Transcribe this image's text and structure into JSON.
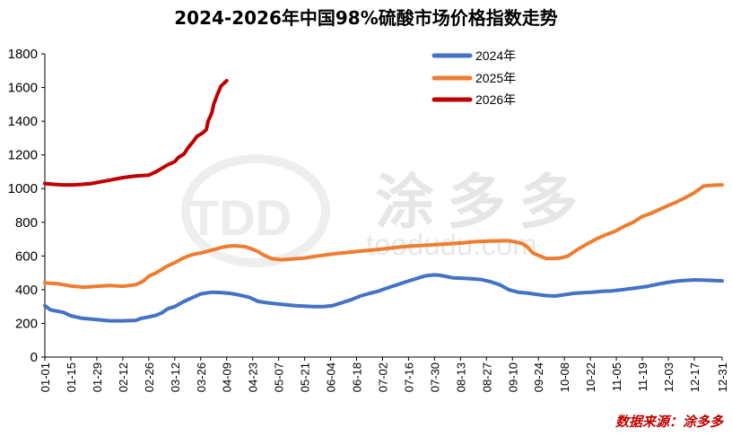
{
  "watermark": {
    "brand": "涂多多",
    "url": "toodudu.com",
    "logo": "TDD"
  },
  "source_text": "数据来源：涂多多",
  "chart_data": {
    "type": "line",
    "title": "2024-2026年中国98%硫酸市场价格指数走势",
    "xlabel": "",
    "ylabel": "",
    "ylim": [
      0,
      1800
    ],
    "yticks": [
      0,
      200,
      400,
      600,
      800,
      1000,
      1200,
      1400,
      1600,
      1800
    ],
    "categories": [
      "01-01",
      "01-15",
      "01-29",
      "02-12",
      "02-26",
      "03-12",
      "03-26",
      "04-09",
      "04-23",
      "05-07",
      "05-21",
      "06-04",
      "06-18",
      "07-02",
      "07-16",
      "07-30",
      "08-13",
      "08-27",
      "09-10",
      "09-24",
      "10-08",
      "10-22",
      "11-05",
      "11-19",
      "12-03",
      "12-17",
      "12-31"
    ],
    "x_unit": "day_of_year",
    "legend_position": "top-right",
    "grid": false,
    "series": [
      {
        "name": "2024年",
        "color": "#4472c4",
        "x": [
          0,
          3,
          10,
          14,
          20,
          28,
          35,
          42,
          49,
          52,
          56,
          60,
          63,
          66,
          70,
          75,
          80,
          84,
          90,
          95,
          100,
          103,
          110,
          115,
          120,
          125,
          130,
          135,
          140,
          145,
          150,
          155,
          160,
          165,
          170,
          175,
          180,
          185,
          190,
          195,
          200,
          205,
          210,
          213,
          220,
          225,
          230,
          235,
          240,
          245,
          250,
          255,
          260,
          265,
          270,
          275,
          280,
          285,
          290,
          295,
          300,
          305,
          310,
          315,
          320,
          325,
          330,
          335,
          340,
          345,
          350,
          355,
          360,
          365
        ],
        "values": [
          305,
          280,
          265,
          245,
          230,
          222,
          215,
          215,
          218,
          230,
          238,
          248,
          262,
          285,
          300,
          330,
          355,
          375,
          385,
          383,
          378,
          372,
          355,
          330,
          322,
          316,
          310,
          305,
          302,
          300,
          300,
          305,
          322,
          340,
          362,
          378,
          392,
          412,
          430,
          448,
          465,
          482,
          488,
          485,
          470,
          468,
          465,
          460,
          448,
          430,
          400,
          385,
          380,
          372,
          365,
          362,
          370,
          378,
          382,
          385,
          390,
          392,
          398,
          405,
          412,
          420,
          432,
          442,
          450,
          455,
          458,
          457,
          455,
          452
        ]
      },
      {
        "name": "2025年",
        "color": "#ed7d31",
        "x": [
          0,
          7,
          14,
          21,
          28,
          35,
          42,
          49,
          53,
          56,
          60,
          63,
          66,
          70,
          75,
          80,
          85,
          90,
          95,
          100,
          103,
          108,
          112,
          115,
          118,
          122,
          127,
          133,
          140,
          147,
          155,
          162,
          169,
          176,
          183,
          190,
          197,
          204,
          211,
          218,
          225,
          232,
          239,
          246,
          250,
          253,
          257,
          260,
          263,
          270,
          274,
          278,
          282,
          287,
          292,
          297,
          302,
          307,
          312,
          317,
          322,
          327,
          332,
          337,
          340,
          345,
          350,
          355,
          360,
          365
        ],
        "values": [
          440,
          435,
          422,
          415,
          420,
          425,
          420,
          430,
          450,
          480,
          500,
          520,
          540,
          560,
          590,
          610,
          620,
          635,
          650,
          660,
          660,
          655,
          640,
          625,
          605,
          585,
          578,
          582,
          588,
          600,
          612,
          620,
          628,
          635,
          642,
          652,
          658,
          663,
          668,
          672,
          678,
          685,
          688,
          690,
          690,
          685,
          675,
          655,
          618,
          585,
          585,
          588,
          600,
          638,
          670,
          700,
          725,
          745,
          775,
          800,
          835,
          855,
          880,
          905,
          918,
          945,
          975,
          1015,
          1020,
          1022
        ]
      },
      {
        "name": "2026年",
        "color": "#c00000",
        "x": [
          0,
          5,
          10,
          15,
          20,
          25,
          30,
          35,
          42,
          49,
          56,
          60,
          63,
          66,
          70,
          72,
          75,
          77,
          80,
          82,
          85,
          87,
          88,
          90,
          91,
          93,
          95,
          96,
          98
        ],
        "values": [
          1030,
          1025,
          1022,
          1022,
          1025,
          1030,
          1040,
          1050,
          1065,
          1075,
          1080,
          1100,
          1120,
          1140,
          1160,
          1185,
          1205,
          1240,
          1280,
          1310,
          1330,
          1350,
          1400,
          1450,
          1500,
          1560,
          1610,
          1620,
          1640
        ]
      }
    ]
  }
}
